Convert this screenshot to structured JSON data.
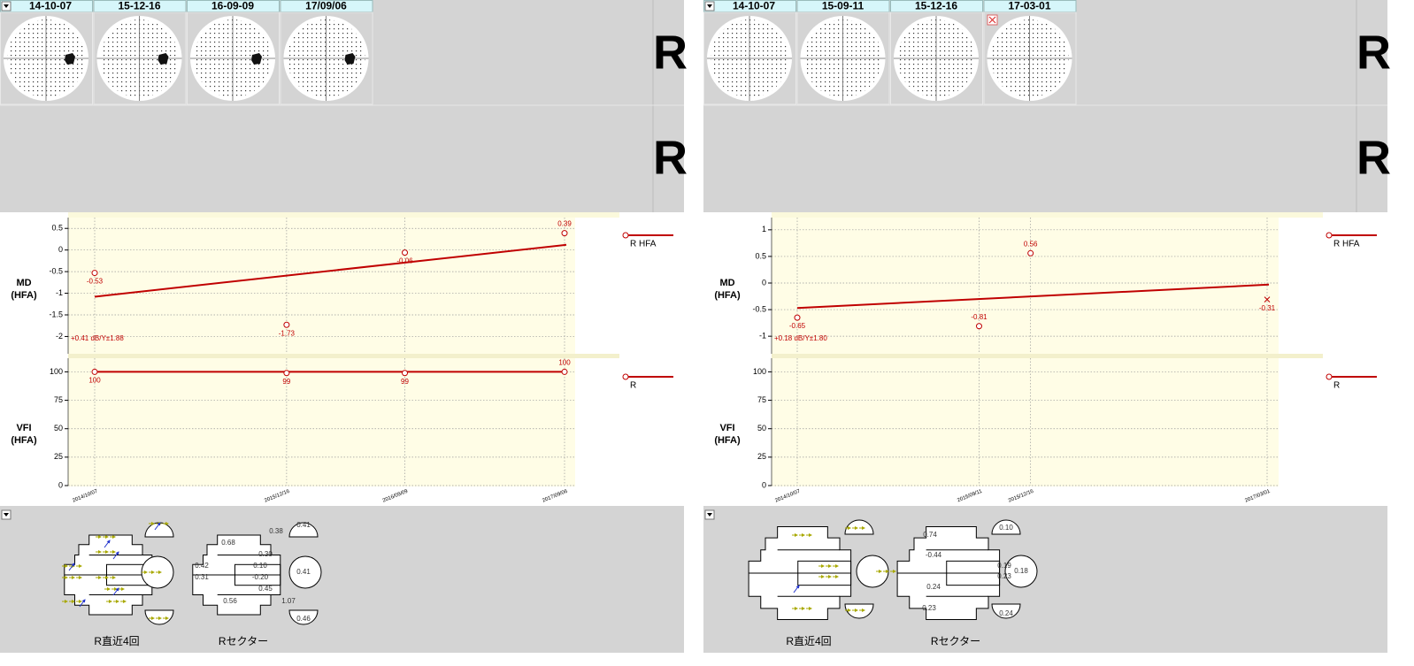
{
  "panels": [
    {
      "dates": [
        "14-10-07",
        "15-12-16",
        "16-09-09",
        "17/09/06"
      ],
      "eye_labels": [
        "R",
        "R"
      ],
      "x": [
        "2014/10/07",
        "2015/12/16",
        "2016/09/09",
        "2017/09/06"
      ],
      "md": {
        "type": "line",
        "label": [
          "MD",
          "(HFA)"
        ],
        "values": [
          -0.53,
          -1.73,
          -0.06,
          0.39
        ],
        "point_shapes": [
          "circle",
          "circle",
          "circle",
          "circle"
        ],
        "trend": [
          -1.08,
          0.12
        ],
        "annotation": "+0.41 dB/Y±1.88",
        "ylim": [
          -2.4,
          0.75
        ],
        "yticks": [
          0.5,
          0,
          -0.5,
          -1,
          -1.5,
          -2
        ],
        "legend": "R HFA",
        "color": "#c00000",
        "grid": true
      },
      "vfi": {
        "type": "line",
        "label": [
          "VFI",
          "(HFA)"
        ],
        "values": [
          100,
          99,
          99,
          100
        ],
        "point_shapes": [
          "circle",
          "circle",
          "circle",
          "circle"
        ],
        "trend": [
          100,
          100
        ],
        "ylim": [
          0,
          112
        ],
        "yticks": [
          100,
          75,
          50,
          25,
          0
        ],
        "legend": "R",
        "color": "#c00000",
        "grid": true
      },
      "sector_titles": [
        "R直近4回",
        "Rセクター"
      ],
      "sector_values": [
        "0.38",
        "0.41",
        "0.68",
        "0.30",
        "0.42",
        "0.10",
        "0.41",
        "0.31",
        "-0.20",
        "0.45",
        "0.56",
        "1.07",
        "0.46"
      ]
    },
    {
      "dates": [
        "14-10-07",
        "15-09-11",
        "15-12-16",
        "17-03-01"
      ],
      "eye_labels": [
        "R",
        "R"
      ],
      "x": [
        "2014/10/07",
        "2015/09/11",
        "2015/12/16",
        "2017/03/01"
      ],
      "md": {
        "type": "line",
        "label": [
          "MD",
          "(HFA)"
        ],
        "values": [
          -0.65,
          -0.81,
          0.56,
          -0.31
        ],
        "point_shapes": [
          "circle",
          "circle",
          "circle",
          "x"
        ],
        "trend": [
          -0.47,
          -0.03
        ],
        "annotation": "+0.18 dB/Y±1.80",
        "ylim": [
          -1.33,
          1.23
        ],
        "yticks": [
          1,
          0.5,
          0,
          -0.5,
          -1
        ],
        "legend": "R HFA",
        "color": "#c00000",
        "grid": true
      },
      "vfi": {
        "type": "line",
        "label": [
          "VFI",
          "(HFA)"
        ],
        "values": [],
        "point_shapes": [],
        "ylim": [
          0,
          112
        ],
        "yticks": [
          100,
          75,
          50,
          25,
          0
        ],
        "legend": "R",
        "color": "#c00000",
        "grid": true
      },
      "sector_titles": [
        "R直近4回",
        "Rセクター"
      ],
      "sector_values": [
        "0.74",
        "0.10",
        "-0.44",
        "0.19",
        "0.23",
        "0.18",
        "0.24",
        "0.23",
        "0.24"
      ]
    }
  ]
}
